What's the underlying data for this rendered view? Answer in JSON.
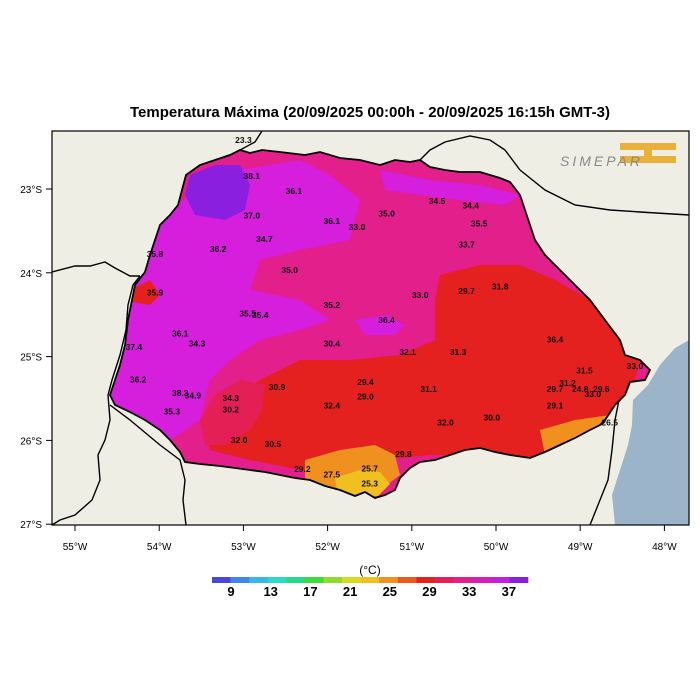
{
  "title": "Temperatura Máxima (20/09/2025 00:00h - 20/09/2025 16:15h GMT-3)",
  "logo": {
    "text": "SIMEPAR",
    "color": "#e9b13a"
  },
  "x_ticks": [
    "55°W",
    "54°W",
    "53°W",
    "52°W",
    "51°W",
    "50°W",
    "49°W",
    "48°W"
  ],
  "y_ticks": [
    "23°S",
    "24°S",
    "25°S",
    "26°S",
    "27°S"
  ],
  "colorbar": {
    "unit": "(°C)",
    "labels": [
      "9",
      "13",
      "17",
      "21",
      "25",
      "29",
      "33",
      "37"
    ],
    "colors": [
      "#4a46d9",
      "#3f86e6",
      "#33b9e6",
      "#2ad9c6",
      "#2ad98a",
      "#3fdc3a",
      "#8fdc2a",
      "#d8dc20",
      "#f0c020",
      "#f0901f",
      "#ea5a1e",
      "#e4211f",
      "#e41f55",
      "#e21f8a",
      "#d61fb8",
      "#c21fdc",
      "#8a1fe0"
    ]
  },
  "colors": {
    "land": "#eeeee4",
    "ocean": "#9bb4c9",
    "frame": "#000000"
  },
  "stations": [
    {
      "t": "23.3",
      "lon": -53.0,
      "lat": -22.45
    },
    {
      "t": "38.1",
      "lon": -52.9,
      "lat": -22.88
    },
    {
      "t": "36.1",
      "lon": -52.4,
      "lat": -23.06
    },
    {
      "t": "37.0",
      "lon": -52.9,
      "lat": -23.35
    },
    {
      "t": "36.1",
      "lon": -51.95,
      "lat": -23.42
    },
    {
      "t": "33.0",
      "lon": -51.65,
      "lat": -23.49
    },
    {
      "t": "35.0",
      "lon": -51.3,
      "lat": -23.33
    },
    {
      "t": "34.5",
      "lon": -50.7,
      "lat": -23.18
    },
    {
      "t": "34.4",
      "lon": -50.3,
      "lat": -23.23
    },
    {
      "t": "35.5",
      "lon": -50.2,
      "lat": -23.45
    },
    {
      "t": "33.7",
      "lon": -50.35,
      "lat": -23.7
    },
    {
      "t": "35.8",
      "lon": -54.05,
      "lat": -23.81
    },
    {
      "t": "36.2",
      "lon": -53.3,
      "lat": -23.75
    },
    {
      "t": "34.7",
      "lon": -52.75,
      "lat": -23.63
    },
    {
      "t": "35.0",
      "lon": -52.45,
      "lat": -24.0
    },
    {
      "t": "35.9",
      "lon": -54.05,
      "lat": -24.27
    },
    {
      "t": "35.5",
      "lon": -52.95,
      "lat": -24.52
    },
    {
      "t": "35.4",
      "lon": -52.8,
      "lat": -24.54
    },
    {
      "t": "35.2",
      "lon": -51.95,
      "lat": -24.42
    },
    {
      "t": "36.4",
      "lon": -51.3,
      "lat": -24.6
    },
    {
      "t": "33.0",
      "lon": -50.9,
      "lat": -24.3
    },
    {
      "t": "29.7",
      "lon": -50.35,
      "lat": -24.25
    },
    {
      "t": "31.8",
      "lon": -49.95,
      "lat": -24.2
    },
    {
      "t": "36.1",
      "lon": -53.75,
      "lat": -24.76
    },
    {
      "t": "34.3",
      "lon": -53.55,
      "lat": -24.88
    },
    {
      "t": "37.4",
      "lon": -54.3,
      "lat": -24.92
    },
    {
      "t": "30.4",
      "lon": -51.95,
      "lat": -24.88
    },
    {
      "t": "32.1",
      "lon": -51.05,
      "lat": -24.98
    },
    {
      "t": "31.3",
      "lon": -50.45,
      "lat": -24.98
    },
    {
      "t": "36.4",
      "lon": -49.3,
      "lat": -24.83
    },
    {
      "t": "36.2",
      "lon": -54.25,
      "lat": -25.31
    },
    {
      "t": "38.3",
      "lon": -53.75,
      "lat": -25.47
    },
    {
      "t": "34.9",
      "lon": -53.6,
      "lat": -25.5
    },
    {
      "t": "34.3",
      "lon": -53.15,
      "lat": -25.53
    },
    {
      "t": "30.2",
      "lon": -53.15,
      "lat": -25.67
    },
    {
      "t": "35.3",
      "lon": -53.85,
      "lat": -25.69
    },
    {
      "t": "30.9",
      "lon": -52.6,
      "lat": -25.4
    },
    {
      "t": "32.4",
      "lon": -51.95,
      "lat": -25.62
    },
    {
      "t": "29.4",
      "lon": -51.55,
      "lat": -25.34
    },
    {
      "t": "29.0",
      "lon": -51.55,
      "lat": -25.51
    },
    {
      "t": "31.1",
      "lon": -50.8,
      "lat": -25.42
    },
    {
      "t": "31.5",
      "lon": -48.95,
      "lat": -25.2
    },
    {
      "t": "33.0",
      "lon": -48.35,
      "lat": -25.15
    },
    {
      "t": "31.2",
      "lon": -49.15,
      "lat": -25.35
    },
    {
      "t": "29.7",
      "lon": -49.3,
      "lat": -25.42
    },
    {
      "t": "24.8",
      "lon": -49.0,
      "lat": -25.42
    },
    {
      "t": "29.6",
      "lon": -48.75,
      "lat": -25.42
    },
    {
      "t": "33.0",
      "lon": -48.85,
      "lat": -25.48
    },
    {
      "t": "29.1",
      "lon": -49.3,
      "lat": -25.62
    },
    {
      "t": "30.0",
      "lon": -50.05,
      "lat": -25.76
    },
    {
      "t": "26.5",
      "lon": -48.65,
      "lat": -25.82
    },
    {
      "t": "32.0",
      "lon": -50.6,
      "lat": -25.82
    },
    {
      "t": "32.0",
      "lon": -53.05,
      "lat": -26.03
    },
    {
      "t": "30.5",
      "lon": -52.65,
      "lat": -26.08
    },
    {
      "t": "29.8",
      "lon": -51.1,
      "lat": -26.2
    },
    {
      "t": "29.2",
      "lon": -52.3,
      "lat": -26.38
    },
    {
      "t": "27.5",
      "lon": -51.95,
      "lat": -26.44
    },
    {
      "t": "25.7",
      "lon": -51.5,
      "lat": -26.37
    },
    {
      "t": "25.3",
      "lon": -51.5,
      "lat": -26.55
    }
  ]
}
